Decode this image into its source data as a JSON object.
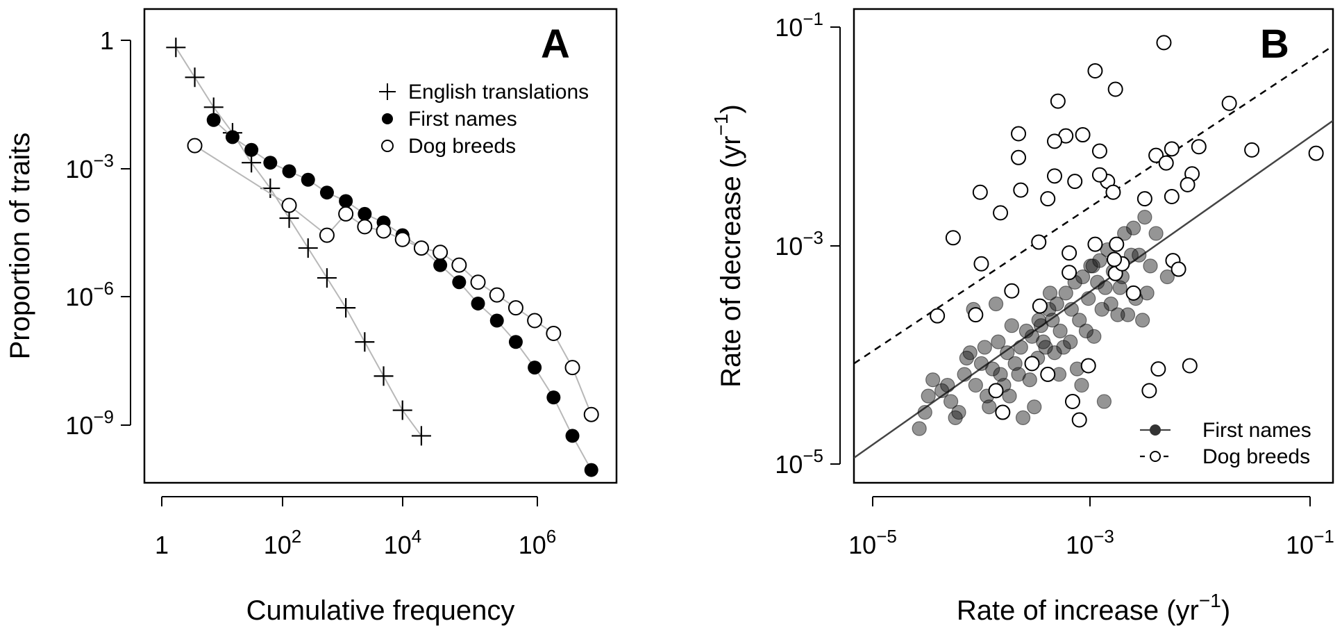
{
  "chart_data": [
    {
      "panel": "A",
      "type": "line",
      "xlabel": "Cumulative frequency",
      "ylabel": "Proportion of traits",
      "log_x": true,
      "log_y": true,
      "xlim_log10": [
        -0.2,
        7.3
      ],
      "ylim_log10": [
        -10.4,
        0.7
      ],
      "x_ticks": [
        {
          "base": "1",
          "exp": ""
        },
        {
          "base": "10",
          "exp": "2"
        },
        {
          "base": "10",
          "exp": "4"
        },
        {
          "base": "10",
          "exp": "6"
        }
      ],
      "y_ticks": [
        {
          "base": "1",
          "exp": ""
        },
        {
          "base": "10",
          "exp": "−3"
        },
        {
          "base": "10",
          "exp": "−6"
        },
        {
          "base": "10",
          "exp": "−9"
        }
      ],
      "legend_position": "top-right",
      "series": [
        {
          "name": "English translations",
          "marker": "plus",
          "x_log10": [
            0.3,
            0.6,
            0.9,
            1.2,
            1.5,
            1.8,
            2.1,
            2.4,
            2.7,
            3.0,
            3.3,
            3.6,
            3.9,
            4.2
          ],
          "y_log10": [
            -0.2,
            -0.9,
            -1.6,
            -2.2,
            -2.9,
            -3.5,
            -4.2,
            -4.9,
            -5.6,
            -6.3,
            -7.1,
            -7.9,
            -8.7,
            -9.3
          ]
        },
        {
          "name": "First names",
          "marker": "filled",
          "x_log10": [
            0.9,
            1.2,
            1.5,
            1.8,
            2.1,
            2.4,
            2.7,
            3.0,
            3.3,
            3.6,
            3.9,
            4.2,
            4.5,
            4.8,
            5.1,
            5.4,
            5.7,
            6.0,
            6.3,
            6.6,
            6.9
          ],
          "y_log10": [
            -1.9,
            -2.3,
            -2.6,
            -2.9,
            -3.1,
            -3.3,
            -3.6,
            -3.8,
            -4.1,
            -4.3,
            -4.6,
            -4.9,
            -5.3,
            -5.7,
            -6.2,
            -6.6,
            -7.1,
            -7.7,
            -8.4,
            -9.3,
            -10.1
          ]
        },
        {
          "name": "Dog breeds",
          "marker": "open",
          "x_log10": [
            0.6,
            2.1,
            2.7,
            3.0,
            3.3,
            3.6,
            3.9,
            4.2,
            4.5,
            4.8,
            5.1,
            5.4,
            5.7,
            6.0,
            6.3,
            6.6,
            6.9
          ],
          "y_log10": [
            -2.5,
            -3.9,
            -4.6,
            -4.1,
            -4.4,
            -4.5,
            -4.7,
            -4.9,
            -5.0,
            -5.3,
            -5.7,
            -6.0,
            -6.3,
            -6.6,
            -6.9,
            -7.7,
            -8.8
          ]
        }
      ]
    },
    {
      "panel": "B",
      "type": "scatter",
      "xlabel": "Rate of increase (yr",
      "xlabel_exp": "−1",
      "xlabel_tail": ")",
      "ylabel": "Rate of decrease (yr",
      "ylabel_exp": "−1",
      "ylabel_tail": ")",
      "log_x": true,
      "log_y": true,
      "xlim_log10": [
        -5.18,
        -0.93
      ],
      "ylim_log10": [
        -5.2,
        -0.83
      ],
      "x_ticks": [
        {
          "base": "10",
          "exp": "−5"
        },
        {
          "base": "10",
          "exp": "−3"
        },
        {
          "base": "10",
          "exp": "−1"
        }
      ],
      "y_ticks": [
        {
          "base": "10",
          "exp": "−1"
        },
        {
          "base": "10",
          "exp": "−3"
        },
        {
          "base": "10",
          "exp": "−5"
        }
      ],
      "legend_position": "bottom-right",
      "fit_lines": [
        {
          "series": "First names",
          "style": "solid",
          "from": [
            -5.18,
            -4.97
          ],
          "to": [
            -0.93,
            -1.86
          ]
        },
        {
          "series": "Dog breeds",
          "style": "dashed",
          "from": [
            -5.18,
            -4.1
          ],
          "to": [
            -0.93,
            -1.17
          ]
        }
      ],
      "series": [
        {
          "name": "First names",
          "marker": "filled-translucent",
          "x_log10": [
            -4.55,
            -4.32,
            -4.1,
            -3.95,
            -3.82,
            -3.7,
            -3.6,
            -3.52,
            -3.45,
            -3.38,
            -3.3,
            -3.22,
            -3.15,
            -3.08,
            -3.0,
            -2.93,
            -2.85,
            -2.78,
            -2.7,
            -2.6,
            -4.4,
            -4.2,
            -4.05,
            -3.9,
            -3.75,
            -3.65,
            -3.5,
            -3.42,
            -3.35,
            -3.25,
            -3.18,
            -3.1,
            -3.02,
            -2.95,
            -2.88,
            -2.8,
            -2.72,
            -2.65,
            -2.5,
            -4.6,
            -4.48,
            -4.28,
            -4.15,
            -4.0,
            -3.85,
            -3.72,
            -3.55,
            -3.4,
            -3.2,
            -3.05,
            -2.9,
            -2.75,
            -2.58,
            -2.4,
            -4.52,
            -4.35,
            -4.18,
            -4.02,
            -3.88,
            -3.78,
            -3.62,
            -3.48,
            -3.32,
            -3.12,
            -2.98,
            -2.82,
            -2.68,
            -2.55,
            -4.25,
            -3.98,
            -3.8,
            -3.58,
            -3.36,
            -3.16,
            -2.96,
            -2.84,
            -2.62,
            -3.68,
            -3.44,
            -3.26,
            -4.12,
            -3.92,
            -3.54,
            -3.06,
            -2.86
          ],
          "y_log10": [
            -4.55,
            -4.45,
            -4.3,
            -4.15,
            -4.0,
            -3.95,
            -3.85,
            -3.75,
            -3.6,
            -3.55,
            -3.45,
            -3.35,
            -3.3,
            -3.2,
            -3.15,
            -3.05,
            -3.0,
            -2.9,
            -2.85,
            -2.75,
            -4.35,
            -4.2,
            -4.1,
            -3.9,
            -4.1,
            -3.8,
            -3.9,
            -3.7,
            -3.8,
            -3.6,
            -3.7,
            -3.5,
            -3.35,
            -3.4,
            -3.25,
            -3.3,
            -3.1,
            -3.1,
            -2.9,
            -4.7,
            -4.25,
            -4.6,
            -4.0,
            -4.4,
            -4.3,
            -4.2,
            -4.05,
            -4.0,
            -4.15,
            -3.85,
            -3.55,
            -3.65,
            -3.45,
            -3.3,
            -4.4,
            -4.3,
            -4.05,
            -3.95,
            -4.2,
            -3.75,
            -4.25,
            -3.95,
            -3.95,
            -3.8,
            -3.6,
            -3.4,
            -3.5,
            -3.2,
            -4.55,
            -4.5,
            -4.4,
            -4.5,
            -4.2,
            -4.3,
            -4.45,
            -3.65,
            -3.7,
            -4.6,
            -3.45,
            -3.9,
            -3.6,
            -3.55,
            -3.7,
            -3.2,
            -3.15
          ]
        },
        {
          "name": "Dog breeds",
          "marker": "open",
          "x_log10": [
            -2.43,
            -3.04,
            -2.86,
            -3.37,
            -3.72,
            -3.3,
            -3.4,
            -3.15,
            -3.72,
            -3.0,
            -2.5,
            -2.12,
            -1.85,
            -1.65,
            -1.08,
            -2.36,
            -2.18,
            -2.22,
            -2.41,
            -2.93,
            -3.0,
            -3.22,
            -3.7,
            -4.06,
            -3.88,
            -2.36,
            -2.88,
            -3.4,
            -2.6,
            -3.46,
            -4.3,
            -4.05,
            -2.86,
            -2.8,
            -3.04,
            -3.54,
            -3.27,
            -3.27,
            -4.1,
            -4.44,
            -3.6,
            -3.92,
            -3.78,
            -3.53,
            -3.46,
            -2.48,
            -2.56,
            -2.7,
            -3.86,
            -3.24,
            -3.18,
            -3.1,
            -2.87,
            -2.85,
            -2.35,
            -2.3,
            -2.2
          ],
          "y_log10": [
            -1.14,
            -1.4,
            -1.57,
            -1.68,
            -1.98,
            -2.0,
            -2.05,
            -1.99,
            -2.2,
            -2.14,
            -2.18,
            -2.1,
            -1.7,
            -2.13,
            -2.16,
            -2.12,
            -2.35,
            -2.45,
            -2.25,
            -2.42,
            -2.36,
            -2.42,
            -2.5,
            -2.52,
            -2.71,
            -2.56,
            -2.52,
            -2.37,
            -2.58,
            -2.58,
            -2.94,
            -3.18,
            -3.27,
            -3.18,
            -3.0,
            -2.98,
            -3.26,
            -3.08,
            -3.65,
            -3.66,
            -4.1,
            -4.35,
            -3.43,
            -3.57,
            -4.2,
            -4.15,
            -4.35,
            -3.45,
            -4.55,
            -4.45,
            -4.62,
            -4.12,
            -3.14,
            -3.0,
            -3.15,
            -3.23,
            -4.12
          ]
        }
      ]
    }
  ]
}
